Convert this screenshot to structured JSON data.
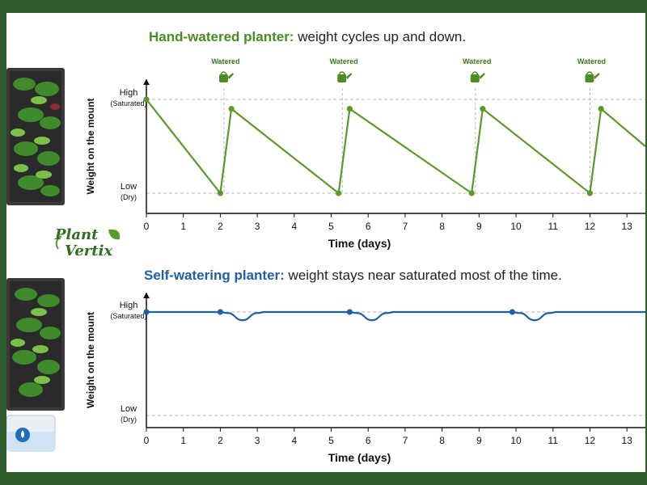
{
  "brand": {
    "line1": "Plant",
    "line2": "Vertix"
  },
  "top": {
    "title_bold": "Hand-watered planter:",
    "title_rest": " weight cycles up and down.",
    "accent": "#5a9a2a"
  },
  "bottom": {
    "title_bold": "Self-watering planter:",
    "title_rest": " weight stays near saturated most of the time.",
    "accent": "#1f5fa8"
  },
  "chart_data": [
    {
      "type": "line",
      "ylabel": "Weight on the mount",
      "xlabel": "Time (days)",
      "xticks": [
        0,
        1,
        2,
        3,
        4,
        5,
        6,
        7,
        8,
        9,
        10,
        11,
        12,
        13
      ],
      "xlim": [
        0,
        13.5
      ],
      "y_levels": [
        {
          "name": "High",
          "sub": "(Saturated)",
          "value": 1
        },
        {
          "name": "Low",
          "sub": "(Dry)",
          "value": 0
        }
      ],
      "ylim": [
        0,
        1
      ],
      "series": [
        {
          "color": "#5a9a2a",
          "points": [
            [
              0,
              1
            ],
            [
              2,
              0
            ],
            [
              2.3,
              0.9
            ],
            [
              5.2,
              0
            ],
            [
              5.5,
              0.9
            ],
            [
              8.8,
              0
            ],
            [
              9.1,
              0.9
            ],
            [
              12,
              0
            ],
            [
              12.3,
              0.9
            ],
            [
              13.5,
              0.5
            ]
          ],
          "markers": [
            [
              0,
              1
            ],
            [
              2,
              0
            ],
            [
              2.3,
              0.9
            ],
            [
              5.2,
              0
            ],
            [
              5.5,
              0.9
            ],
            [
              8.8,
              0
            ],
            [
              9.1,
              0.9
            ],
            [
              12,
              0
            ],
            [
              12.3,
              0.9
            ]
          ]
        }
      ],
      "annotations": [
        {
          "x": 2.1,
          "text": "Watered",
          "icon": "watering-can-icon"
        },
        {
          "x": 5.3,
          "text": "Watered",
          "icon": "watering-can-icon"
        },
        {
          "x": 8.9,
          "text": "Watered",
          "icon": "watering-can-icon"
        },
        {
          "x": 12.0,
          "text": "Watered",
          "icon": "watering-can-icon"
        }
      ]
    },
    {
      "type": "line",
      "ylabel": "Weight on the mount",
      "xlabel": "Time (days)",
      "xticks": [
        0,
        1,
        2,
        3,
        4,
        5,
        6,
        7,
        8,
        9,
        10,
        11,
        12,
        13
      ],
      "xlim": [
        0,
        13.5
      ],
      "y_levels": [
        {
          "name": "High",
          "sub": "(Saturated)",
          "value": 1
        },
        {
          "name": "Low",
          "sub": "(Dry)",
          "value": 0
        }
      ],
      "ylim": [
        0,
        1
      ],
      "series": [
        {
          "color": "#1f5fa8",
          "points": [
            [
              0,
              1
            ],
            [
              2,
              1
            ],
            [
              2.2,
              0.99
            ],
            [
              2.6,
              0.92
            ],
            [
              3.0,
              0.99
            ],
            [
              3.2,
              1
            ],
            [
              5.5,
              1
            ],
            [
              5.7,
              0.99
            ],
            [
              6.1,
              0.92
            ],
            [
              6.5,
              0.99
            ],
            [
              6.7,
              1
            ],
            [
              9.9,
              1
            ],
            [
              10.1,
              0.99
            ],
            [
              10.5,
              0.92
            ],
            [
              10.9,
              0.99
            ],
            [
              11.1,
              1
            ],
            [
              13.5,
              1
            ]
          ],
          "markers": [
            [
              0,
              1
            ],
            [
              2,
              1
            ],
            [
              5.5,
              1
            ],
            [
              9.9,
              1
            ]
          ]
        }
      ]
    }
  ]
}
